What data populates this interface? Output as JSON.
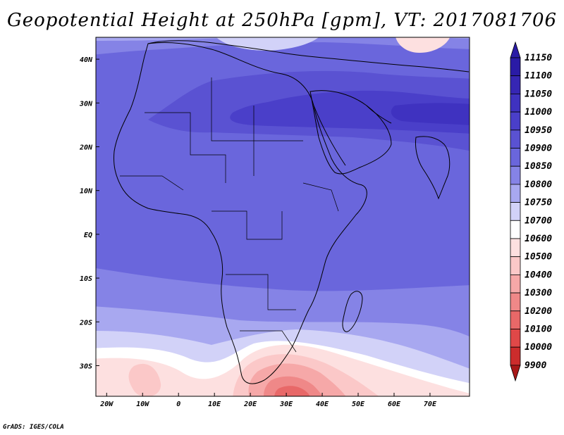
{
  "title": "Geopotential Height at 250hPa [gpm], VT: 2017081706",
  "credit": "GrADS: IGES/COLA",
  "map": {
    "variable": "Geopotential Height",
    "level": "250hPa",
    "units": "gpm",
    "valid_time": "2017081706",
    "lon_range": [
      -23,
      81
    ],
    "lat_range": [
      -37,
      45
    ],
    "x_ticks": [
      {
        "lon": -20,
        "label": "20W"
      },
      {
        "lon": -10,
        "label": "10W"
      },
      {
        "lon": 0,
        "label": "0"
      },
      {
        "lon": 10,
        "label": "10E"
      },
      {
        "lon": 20,
        "label": "20E"
      },
      {
        "lon": 30,
        "label": "30E"
      },
      {
        "lon": 40,
        "label": "40E"
      },
      {
        "lon": 50,
        "label": "50E"
      },
      {
        "lon": 60,
        "label": "60E"
      },
      {
        "lon": 70,
        "label": "70E"
      }
    ],
    "y_ticks": [
      {
        "lat": 40,
        "label": "40N"
      },
      {
        "lat": 30,
        "label": "30N"
      },
      {
        "lat": 20,
        "label": "20N"
      },
      {
        "lat": 10,
        "label": "10N"
      },
      {
        "lat": 0,
        "label": "EQ"
      },
      {
        "lat": -10,
        "label": "10S"
      },
      {
        "lat": -20,
        "label": "20S"
      },
      {
        "lat": -30,
        "label": "30S"
      }
    ]
  },
  "colorbar": {
    "levels": [
      {
        "label": "11150",
        "color": "#2a1ba6"
      },
      {
        "label": "11100",
        "color": "#3626b4"
      },
      {
        "label": "11050",
        "color": "#3f32c0"
      },
      {
        "label": "11000",
        "color": "#4a3fc9"
      },
      {
        "label": "10950",
        "color": "#5a52d2"
      },
      {
        "label": "10900",
        "color": "#6a66dc"
      },
      {
        "label": "10850",
        "color": "#8583e6"
      },
      {
        "label": "10800",
        "color": "#a8a8f0"
      },
      {
        "label": "10750",
        "color": "#d2d2f8"
      },
      {
        "label": "10700",
        "color": "#ffffff"
      },
      {
        "label": "10600",
        "color": "#fde0e0"
      },
      {
        "label": "10500",
        "color": "#fbc8c8"
      },
      {
        "label": "10400",
        "color": "#f6a8a8"
      },
      {
        "label": "10300",
        "color": "#ef8888"
      },
      {
        "label": "10200",
        "color": "#e86868"
      },
      {
        "label": "10100",
        "color": "#e04848"
      },
      {
        "label": "10000",
        "color": "#cc2c2c"
      },
      {
        "label": "9900",
        "color": "#a81818"
      }
    ],
    "top_arrow_color": "#2a1ba6",
    "bottom_arrow_color": "#a81818"
  }
}
